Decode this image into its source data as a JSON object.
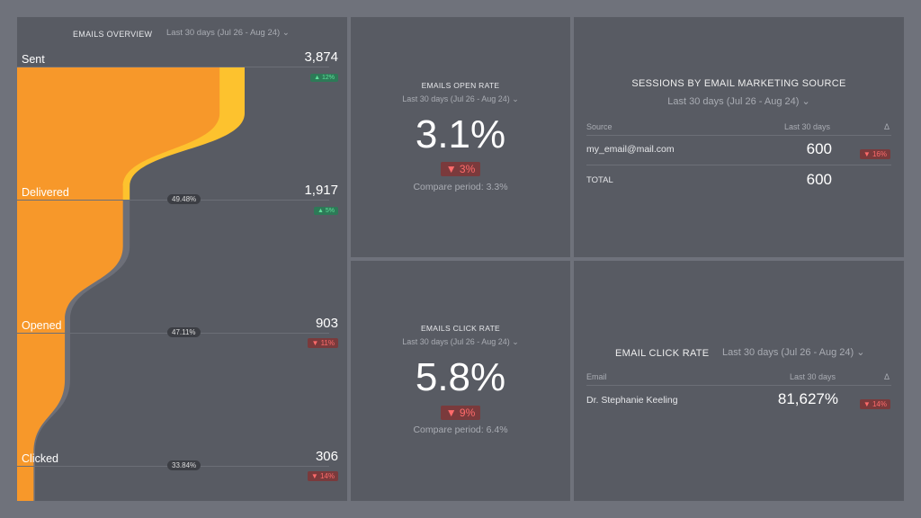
{
  "overview": {
    "title": "EMAILS OVERVIEW",
    "period": "Last 30 days (Jul 26 - Aug 24)",
    "stages": [
      {
        "label": "Sent",
        "value": "3,874",
        "num": 3874,
        "delta": "▲ 12%",
        "dir": "up",
        "rate": ""
      },
      {
        "label": "Delivered",
        "value": "1,917",
        "num": 1917,
        "delta": "▲ 5%",
        "dir": "up",
        "rate": "49.48%"
      },
      {
        "label": "Opened",
        "value": "903",
        "num": 903,
        "delta": "▼ 11%",
        "dir": "down",
        "rate": "47.11%"
      },
      {
        "label": "Clicked",
        "value": "306",
        "num": 306,
        "delta": "▼ 14%",
        "dir": "down",
        "rate": "33.84%"
      }
    ],
    "colors": {
      "primary": "#f7982a",
      "secondary": "#fdc22e",
      "shadow": "#6d6f78"
    }
  },
  "open_rate": {
    "title": "EMAILS OPEN RATE",
    "period": "Last 30 days (Jul 26 - Aug 24)",
    "value": "3.1%",
    "delta": "▼ 3%",
    "compare": "Compare period: 3.3%"
  },
  "click_rate": {
    "title": "EMAILS CLICK RATE",
    "period": "Last 30 days (Jul 26 - Aug 24)",
    "value": "5.8%",
    "delta": "▼ 9%",
    "compare": "Compare period: 6.4%"
  },
  "sessions": {
    "title": "SESSIONS BY EMAIL MARKETING SOURCE",
    "period": "Last 30 days (Jul 26 - Aug 24)",
    "headers": [
      "Source",
      "Last 30 days",
      "Δ"
    ],
    "rows": [
      {
        "source": "my_email@mail.com",
        "value": "600",
        "delta": "▼ 16%"
      }
    ],
    "total": {
      "label": "TOTAL",
      "value": "600"
    }
  },
  "email_click": {
    "title": "EMAIL CLICK RATE",
    "period": "Last 30 days (Jul 26 - Aug 24)",
    "headers": [
      "Email",
      "Last 30 days",
      "Δ"
    ],
    "rows": [
      {
        "email": "Dr. Stephanie Keeling",
        "value": "81,627%",
        "delta": "▼ 14%"
      }
    ]
  }
}
